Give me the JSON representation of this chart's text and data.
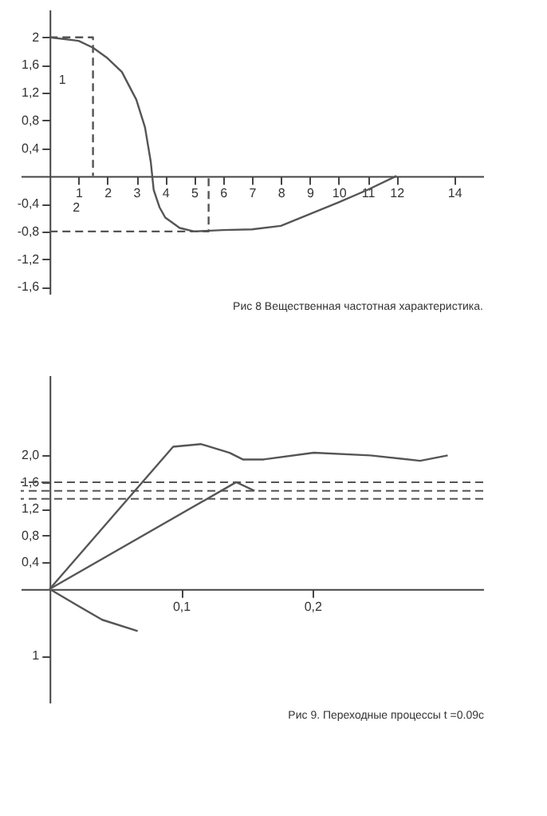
{
  "chart_data": [
    {
      "type": "line",
      "title": "Рис 8 Вещественная частотная характеристика.",
      "xlim": [
        -1,
        15
      ],
      "ylim": [
        -1.7,
        2.4
      ],
      "xticks": [
        1,
        2,
        3,
        4,
        5,
        6,
        7,
        8,
        9,
        10,
        11,
        12,
        14
      ],
      "yticks": [
        {
          "value": -1.6,
          "label": "-1,6"
        },
        {
          "value": -1.2,
          "label": "-1,2"
        },
        {
          "value": -0.8,
          "label": "-0,8"
        },
        {
          "value": -0.4,
          "label": "-0,4"
        },
        {
          "value": 0.4,
          "label": "0,4"
        },
        {
          "value": 0.8,
          "label": "0,8"
        },
        {
          "value": 1.2,
          "label": "1,2"
        },
        {
          "value": 1.6,
          "label": "1,6"
        },
        2
      ],
      "grid": false,
      "marker": "none",
      "series": [
        {
          "color": "#555555",
          "line_style": "solid",
          "x": [
            0,
            1,
            1.5,
            2,
            2.5,
            3,
            3.3,
            3.5,
            3.6,
            3.8,
            4,
            4.5,
            5,
            6,
            7,
            8,
            9,
            10,
            11,
            12
          ],
          "values": [
            2,
            1.95,
            1.85,
            1.7,
            1.5,
            1.1,
            0.7,
            0.2,
            -0.2,
            -0.45,
            -0.6,
            -0.75,
            -0.8,
            -0.78,
            -0.77,
            -0.72,
            -0.55,
            -0.38,
            -0.2,
            0
          ]
        },
        {
          "color": "#555555",
          "line_style": "dashed",
          "x": [
            0,
            1.5,
            1.5
          ],
          "values": [
            2,
            2,
            0
          ]
        },
        {
          "color": "#555555",
          "line_style": "dashed",
          "x": [
            0,
            5.5,
            5.5
          ],
          "values": [
            -0.8,
            -0.8,
            0
          ]
        }
      ],
      "annotations": [
        "1",
        "2"
      ]
    },
    {
      "type": "line",
      "title": "Рис 9. Переходные процессы t =0.09с",
      "xlim": [
        -0.022,
        0.33
      ],
      "ylim": [
        -1.7,
        3.2
      ],
      "xticks": [
        {
          "value": 0.1,
          "label": "0,1"
        },
        {
          "value": 0.2,
          "label": "0,2"
        }
      ],
      "yticks": [
        {
          "value": -1,
          "label": "1"
        },
        {
          "value": 0.4,
          "label": "0,4"
        },
        {
          "value": 0.8,
          "label": "0,8"
        },
        {
          "value": 1.2,
          "label": "1,2"
        },
        {
          "value": 1.6,
          "label": "1,6"
        },
        {
          "value": 2,
          "label": "2,0"
        }
      ],
      "grid": false,
      "marker": "none",
      "series": [
        {
          "color": "#555555",
          "line_style": "solid",
          "x": [
            0,
            0.094,
            0.115,
            0.137,
            0.147,
            0.163,
            0.201,
            0.244,
            0.282,
            0.303
          ],
          "values": [
            0,
            2.13,
            2.17,
            2.04,
            1.94,
            1.94,
            2.04,
            2,
            1.92,
            2
          ]
        },
        {
          "color": "#555555",
          "line_style": "solid",
          "x": [
            0,
            0.142,
            0.156
          ],
          "values": [
            0,
            1.6,
            1.47
          ]
        },
        {
          "color": "#555555",
          "line_style": "solid",
          "x": [
            0,
            0.018,
            0.04,
            0.067
          ],
          "values": [
            0,
            -0.21,
            -0.46,
            -0.63
          ]
        }
      ],
      "ref_lines": [
        {
          "axis": "y",
          "value": 1.6,
          "line_style": "dashed"
        },
        {
          "axis": "y",
          "value": 1.47,
          "line_style": "dashed"
        },
        {
          "axis": "y",
          "value": 1.35,
          "line_style": "dashed"
        }
      ]
    }
  ]
}
